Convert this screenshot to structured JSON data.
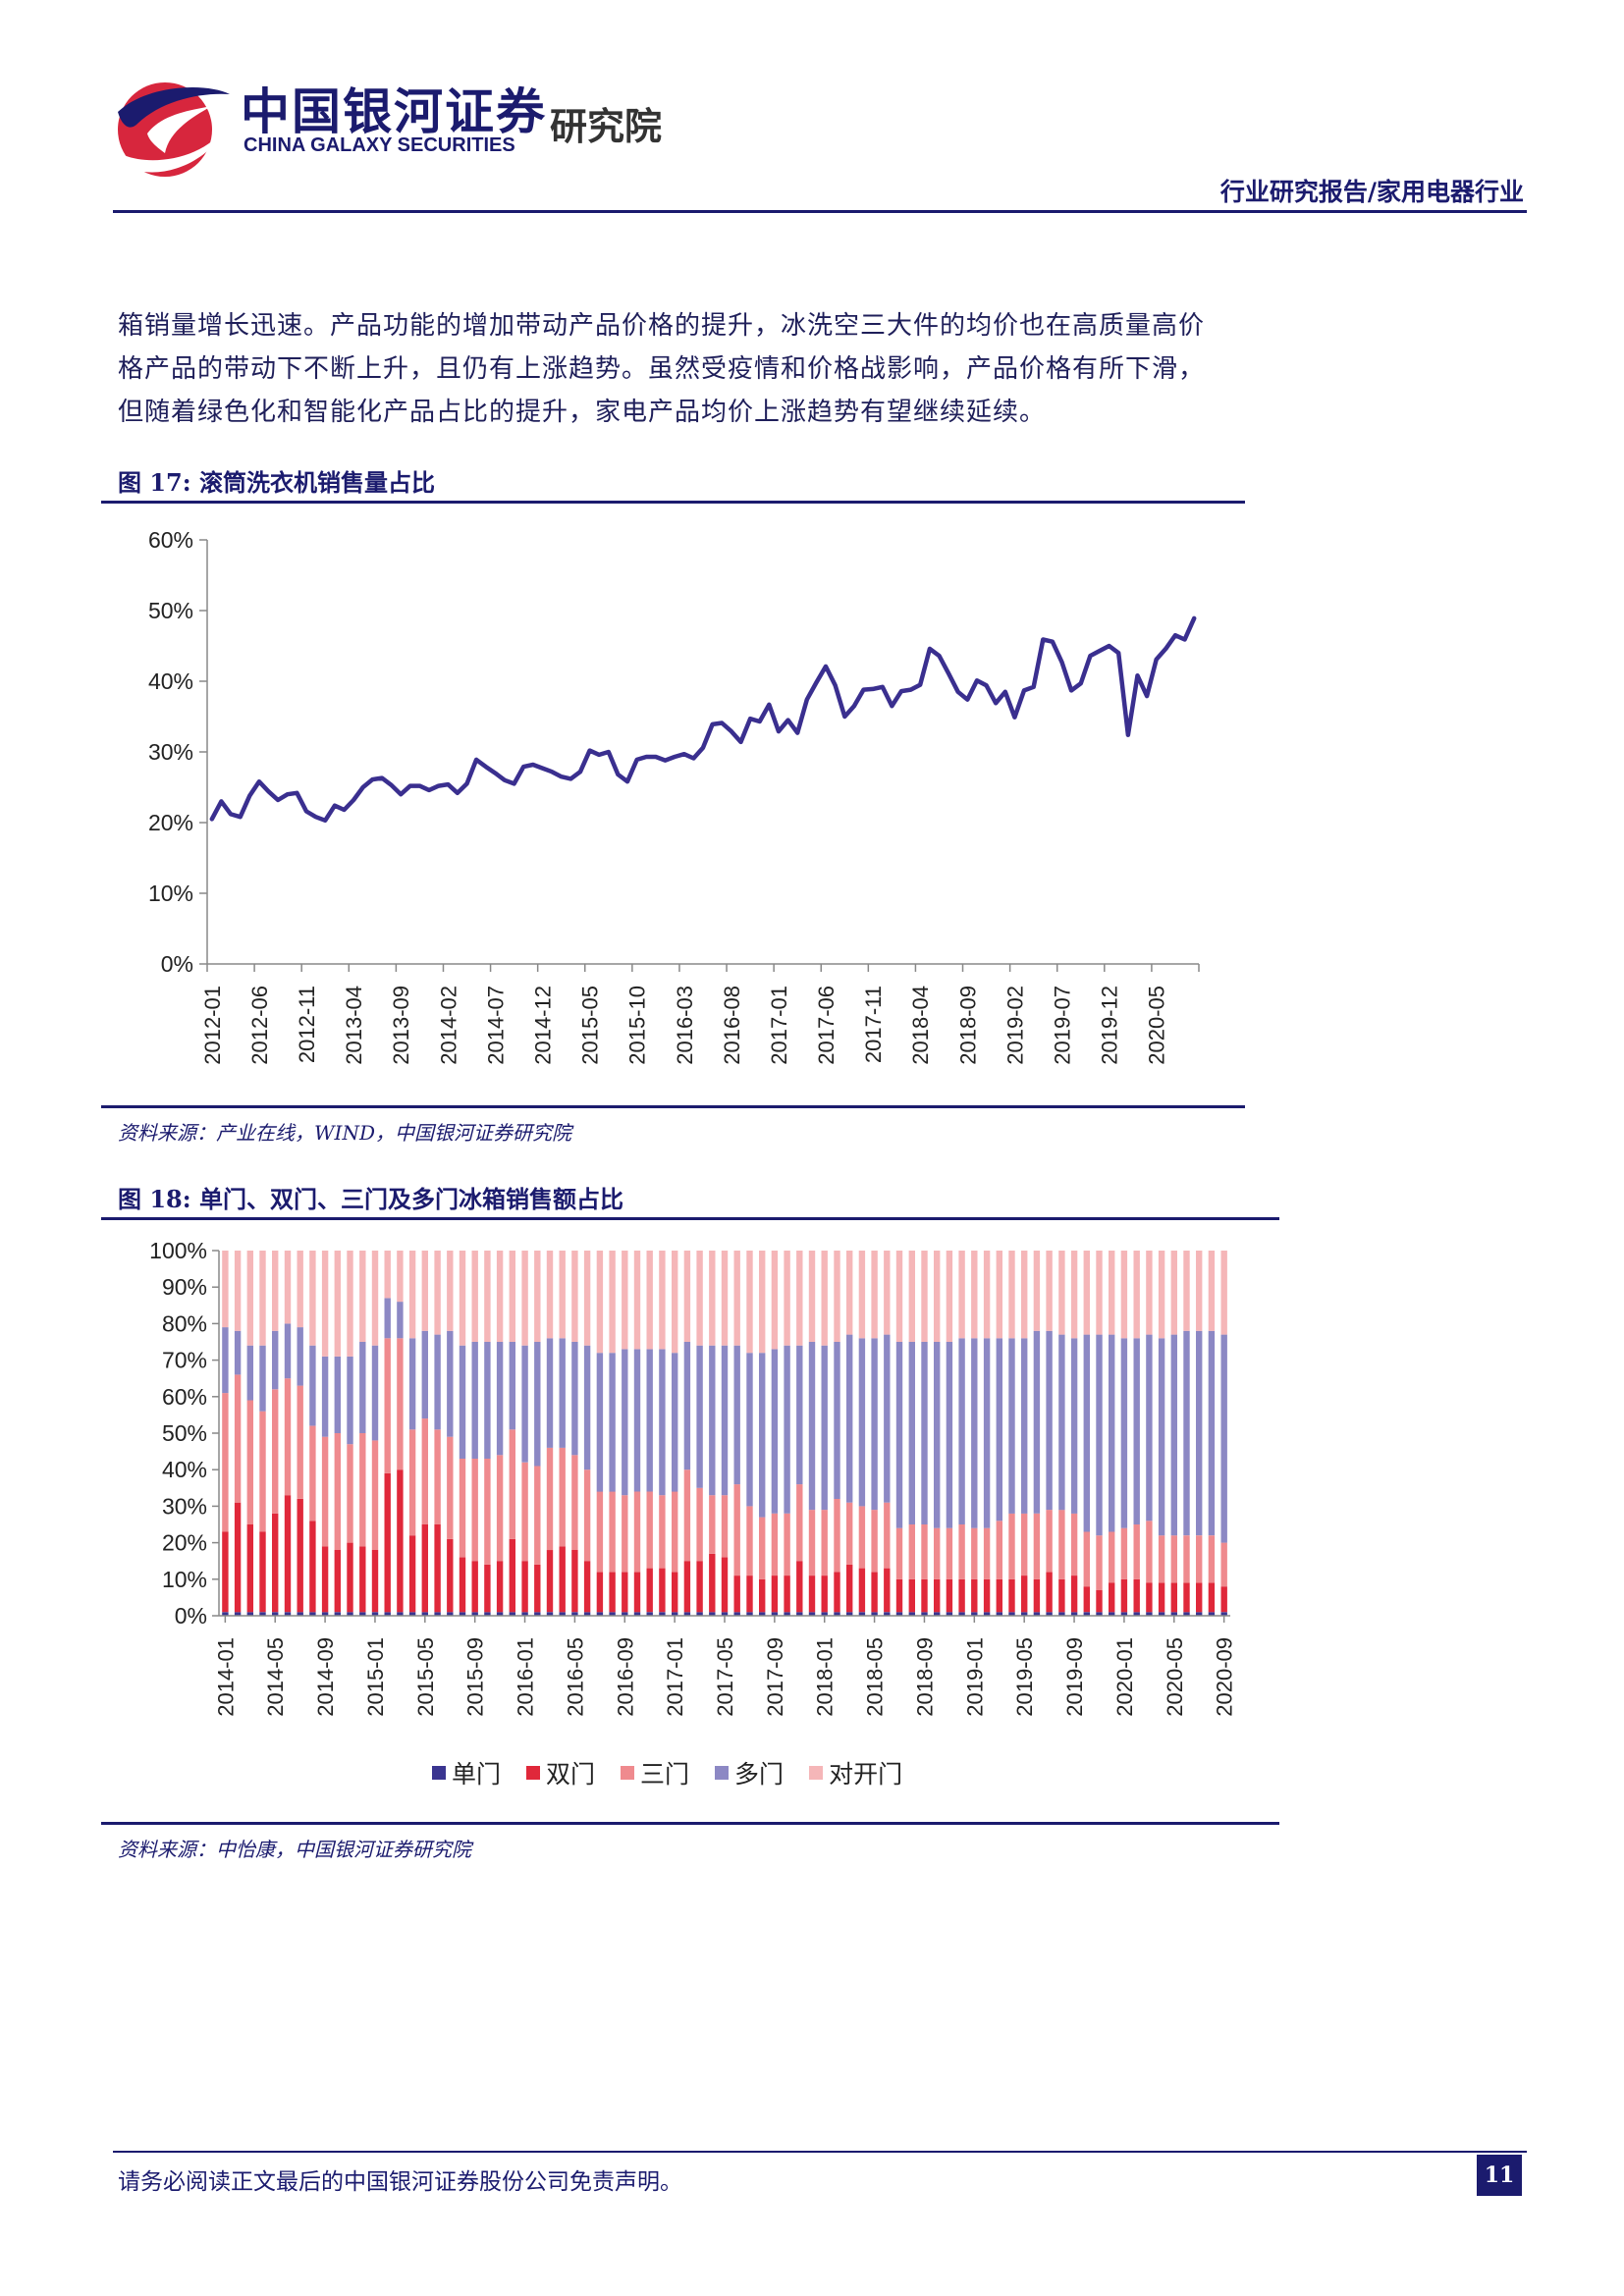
{
  "header": {
    "logo_cn": "中国银河证券",
    "logo_en": "CHINA GALAXY SECURITIES",
    "logo_inst": "研究院",
    "doc_type": "行业研究报告/家用电器行业"
  },
  "body_text": {
    "lines": [
      "箱销量增长迅速。产品功能的增加带动产品价格的提升，冰洗空三大件的均价也在高质量高价",
      "格产品的带动下不断上升，且仍有上涨趋势。虽然受疫情和价格战影响，产品价格有所下滑，",
      "但随着绿色化和智能化产品占比的提升，家电产品均价上涨趋势有望继续延续。"
    ]
  },
  "figure17": {
    "title": "图 17:  滚筒洗衣机销售量占比",
    "source": "资料来源：产业在线，WIND，中国银河证券研究院"
  },
  "figure18": {
    "title": "图 18:  单门、双门、三门及多门冰箱销售额占比",
    "source": "资料来源：中怡康，中国银河证券研究院"
  },
  "footer": {
    "disclaimer": "请务必阅读正文最后的中国银河证券股份公司免责声明。",
    "page_number": "11"
  },
  "chart_data": [
    {
      "type": "line",
      "title": "",
      "start": "2012-01",
      "x_tick_labels": [
        "2012-01",
        "2012-06",
        "2012-11",
        "2013-04",
        "2013-09",
        "2014-02",
        "2014-07",
        "2014-12",
        "2015-05",
        "2015-10",
        "2016-03",
        "2016-08",
        "2017-01",
        "2017-06",
        "2017-11",
        "2018-04",
        "2018-09",
        "2019-02",
        "2019-07",
        "2019-12",
        "2020-05"
      ],
      "y_tick_labels": [
        "0%",
        "10%",
        "20%",
        "30%",
        "40%",
        "50%",
        "60%"
      ],
      "ylim": [
        0,
        60
      ],
      "y_unit": "%",
      "color": "#3a2f8f",
      "series": [
        {
          "values": [
            20.5,
            23,
            21.2,
            20.8,
            23.8,
            25.8,
            24.4,
            23.2,
            24,
            24.2,
            21.6,
            20.8,
            20.3,
            22.4,
            21.8,
            23.2,
            25,
            26.1,
            26.3,
            25.3,
            24,
            25.2,
            25.2,
            24.6,
            25.2,
            25.4,
            24.2,
            25.5,
            28.9,
            27.9,
            27,
            26,
            25.5,
            27.9,
            28.2,
            27.7,
            27.2,
            26.5,
            26.2,
            27.2,
            30.2,
            29.6,
            30,
            26.8,
            25.8,
            28.9,
            29.3,
            29.3,
            28.8,
            29.3,
            29.7,
            29.1,
            30.6,
            33.9,
            34.1,
            32.9,
            31.4,
            34.7,
            34.3,
            36.7,
            32.9,
            34.5,
            32.7,
            37.4,
            39.8,
            42.1,
            39.4,
            35,
            36.5,
            38.8,
            38.9,
            39.2,
            36.5,
            38.6,
            38.8,
            39.5,
            44.6,
            43.6,
            41.1,
            38.5,
            37.4,
            40.1,
            39.4,
            36.9,
            38.5,
            34.9,
            38.7,
            39.2,
            45.9,
            45.6,
            42.7,
            38.7,
            39.7,
            43.6,
            44.3,
            45,
            44,
            32.4,
            40.8,
            37.9,
            43.1,
            44.6,
            46.5,
            45.9,
            48.9
          ]
        }
      ]
    },
    {
      "type": "bar",
      "stacked": true,
      "title": "",
      "start": "2014-01",
      "x_tick_labels": [
        "2014-01",
        "2014-05",
        "2014-09",
        "2015-01",
        "2015-05",
        "2015-09",
        "2016-01",
        "2016-05",
        "2016-09",
        "2017-01",
        "2017-05",
        "2017-09",
        "2018-01",
        "2018-05",
        "2018-09",
        "2019-01",
        "2019-05",
        "2019-09",
        "2020-01",
        "2020-05",
        "2020-09"
      ],
      "y_tick_labels": [
        "0%",
        "10%",
        "20%",
        "30%",
        "40%",
        "50%",
        "60%",
        "70%",
        "80%",
        "90%",
        "100%"
      ],
      "ylim": [
        0,
        100
      ],
      "y_unit": "%",
      "legend": [
        "单门",
        "双门",
        "三门",
        "多门",
        "对开门"
      ],
      "legend_position": "bottom",
      "colors": [
        "#3a3590",
        "#e0283a",
        "#ef8a8e",
        "#8c88c4",
        "#f5b6b8"
      ],
      "series": [
        {
          "name": "单门",
          "values": [
            1,
            1,
            1,
            1,
            1,
            1,
            1,
            1,
            1,
            1,
            1,
            1,
            1,
            1,
            1,
            1,
            1,
            1,
            1,
            1,
            1,
            1,
            1,
            1,
            1,
            1,
            1,
            1,
            1,
            1,
            1,
            1,
            1,
            1,
            1,
            1,
            1,
            1,
            1,
            1,
            1,
            1,
            1,
            1,
            1,
            1,
            1,
            1,
            1,
            1,
            1,
            1,
            1,
            1,
            1,
            1,
            1,
            1,
            1,
            1,
            1,
            1,
            1,
            1,
            1,
            1,
            1,
            1,
            1,
            1,
            1,
            1,
            1,
            1,
            1,
            1,
            1,
            1,
            1,
            1,
            1
          ]
        },
        {
          "name": "双门",
          "values": [
            22,
            30,
            24,
            22,
            27,
            32,
            31,
            25,
            18,
            17,
            19,
            18,
            17,
            38,
            39,
            21,
            24,
            24,
            20,
            15,
            14,
            13,
            14,
            20,
            14,
            13,
            17,
            18,
            17,
            14,
            11,
            11,
            11,
            11,
            12,
            12,
            11,
            14,
            14,
            16,
            15,
            10,
            10,
            9,
            10,
            10,
            14,
            10,
            10,
            11,
            13,
            12,
            11,
            12,
            9,
            9,
            9,
            9,
            9,
            9,
            9,
            9,
            9,
            9,
            10,
            9,
            11,
            9,
            10,
            7,
            6,
            8,
            9,
            9,
            8,
            8,
            8,
            8,
            8,
            8,
            7
          ]
        },
        {
          "name": "三门",
          "values": [
            38,
            35,
            34,
            33,
            34,
            32,
            31,
            26,
            30,
            32,
            27,
            31,
            30,
            37,
            36,
            29,
            29,
            26,
            28,
            27,
            28,
            29,
            29,
            30,
            27,
            27,
            28,
            27,
            26,
            25,
            22,
            22,
            21,
            22,
            21,
            20,
            22,
            25,
            20,
            16,
            17,
            25,
            19,
            17,
            17,
            17,
            21,
            18,
            18,
            20,
            17,
            17,
            17,
            18,
            14,
            15,
            15,
            14,
            14,
            15,
            14,
            14,
            16,
            18,
            17,
            18,
            17,
            19,
            17,
            15,
            15,
            14,
            14,
            15,
            17,
            13,
            13,
            13,
            13,
            13,
            12
          ]
        },
        {
          "name": "多门",
          "values": [
            18,
            12,
            15,
            18,
            16,
            15,
            16,
            22,
            22,
            21,
            24,
            25,
            26,
            11,
            10,
            25,
            24,
            26,
            29,
            31,
            32,
            32,
            31,
            24,
            32,
            34,
            30,
            30,
            31,
            34,
            38,
            38,
            40,
            39,
            39,
            40,
            38,
            35,
            39,
            41,
            41,
            38,
            42,
            45,
            45,
            46,
            38,
            46,
            45,
            43,
            46,
            46,
            47,
            46,
            51,
            50,
            50,
            51,
            51,
            51,
            52,
            52,
            50,
            48,
            48,
            50,
            49,
            48,
            48,
            54,
            55,
            54,
            52,
            51,
            51,
            54,
            55,
            56,
            56,
            56,
            57
          ]
        },
        {
          "name": "对开门",
          "values": [
            21,
            22,
            26,
            26,
            22,
            20,
            21,
            26,
            29,
            29,
            29,
            25,
            26,
            13,
            14,
            24,
            22,
            23,
            22,
            26,
            25,
            25,
            25,
            25,
            26,
            25,
            24,
            24,
            25,
            26,
            28,
            28,
            27,
            27,
            27,
            27,
            28,
            25,
            26,
            26,
            26,
            26,
            28,
            28,
            27,
            26,
            26,
            25,
            26,
            25,
            23,
            24,
            24,
            23,
            25,
            25,
            25,
            25,
            25,
            24,
            24,
            24,
            24,
            24,
            24,
            22,
            22,
            23,
            24,
            23,
            23,
            23,
            24,
            24,
            23,
            24,
            23,
            22,
            22,
            22,
            23
          ]
        }
      ]
    }
  ]
}
